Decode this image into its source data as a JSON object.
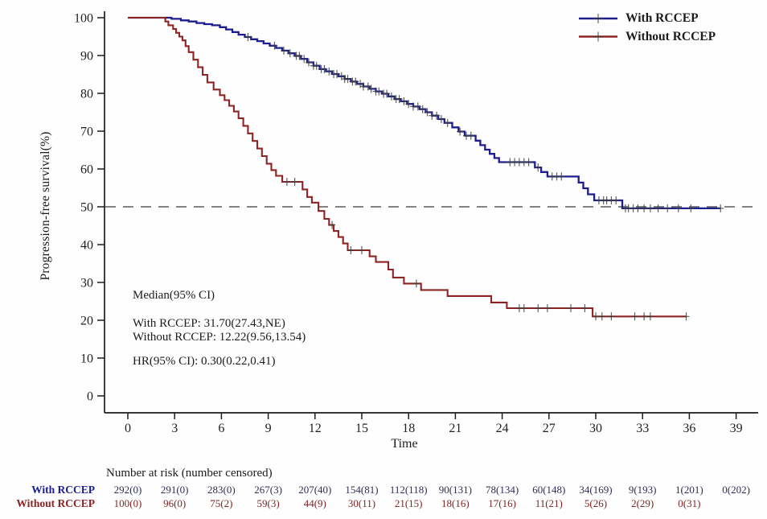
{
  "figure": {
    "background": "#fefefe",
    "axis_color": "#1c1c1c",
    "tick_label_color": "#1f1f1f",
    "dashed_line_color": "#5a5a5a",
    "censor_mark_color": "#404040"
  },
  "chart_data": {
    "type": "line",
    "subtype": "kaplan-meier-step-curves",
    "title": "",
    "xlabel": "Time",
    "ylabel": "Progression-free survival(%)",
    "xlim": [
      0,
      39
    ],
    "ylim": [
      0,
      100
    ],
    "xticks": [
      0,
      3,
      6,
      9,
      12,
      15,
      18,
      21,
      24,
      27,
      30,
      33,
      36,
      39
    ],
    "yticks": [
      0,
      10,
      20,
      30,
      40,
      50,
      60,
      70,
      80,
      90,
      100
    ],
    "grid": false,
    "reference_line_y": 50,
    "legend_position": "top-right",
    "series": [
      {
        "name": "With RCCEP",
        "color": "#1d1d8f",
        "start": [
          0,
          100
        ],
        "end_time": 38.0,
        "steps": [
          [
            2.8,
            99.7
          ],
          [
            3.4,
            99.3
          ],
          [
            3.9,
            99.0
          ],
          [
            4.4,
            98.6
          ],
          [
            4.9,
            98.3
          ],
          [
            5.4,
            98.0
          ],
          [
            5.9,
            97.5
          ],
          [
            6.3,
            96.9
          ],
          [
            6.7,
            96.2
          ],
          [
            7.1,
            95.5
          ],
          [
            7.5,
            94.9
          ],
          [
            7.9,
            94.3
          ],
          [
            8.3,
            93.8
          ],
          [
            8.7,
            93.2
          ],
          [
            9.1,
            92.6
          ],
          [
            9.5,
            92.0
          ],
          [
            9.9,
            91.3
          ],
          [
            10.3,
            90.6
          ],
          [
            10.7,
            89.9
          ],
          [
            11.1,
            89.1
          ],
          [
            11.5,
            88.2
          ],
          [
            11.9,
            87.3
          ],
          [
            12.3,
            86.4
          ],
          [
            12.7,
            85.8
          ],
          [
            13.1,
            85.1
          ],
          [
            13.5,
            84.5
          ],
          [
            13.9,
            83.8
          ],
          [
            14.3,
            83.1
          ],
          [
            14.7,
            82.5
          ],
          [
            15.1,
            81.8
          ],
          [
            15.5,
            81.2
          ],
          [
            15.9,
            80.5
          ],
          [
            16.3,
            79.9
          ],
          [
            16.7,
            79.2
          ],
          [
            17.1,
            78.5
          ],
          [
            17.5,
            77.9
          ],
          [
            17.9,
            77.2
          ],
          [
            18.3,
            76.5
          ],
          [
            18.7,
            75.8
          ],
          [
            19.1,
            75.0
          ],
          [
            19.5,
            74.1
          ],
          [
            19.9,
            73.2
          ],
          [
            20.3,
            72.2
          ],
          [
            20.8,
            71.0
          ],
          [
            21.2,
            69.9
          ],
          [
            21.6,
            68.8
          ],
          [
            22.3,
            67.5
          ],
          [
            22.6,
            66.3
          ],
          [
            22.9,
            65.1
          ],
          [
            23.2,
            64.0
          ],
          [
            23.5,
            62.9
          ],
          [
            23.8,
            61.8
          ],
          [
            26.1,
            60.4
          ],
          [
            26.5,
            59.2
          ],
          [
            26.9,
            58.0
          ],
          [
            28.9,
            56.4
          ],
          [
            29.2,
            54.9
          ],
          [
            29.5,
            53.3
          ],
          [
            29.9,
            51.7
          ],
          [
            31.7,
            49.6
          ]
        ],
        "censor_times": [
          7.7,
          9.4,
          10.0,
          10.4,
          10.8,
          11.0,
          11.3,
          11.6,
          11.9,
          12.1,
          12.4,
          12.6,
          12.9,
          13.2,
          13.4,
          13.7,
          13.9,
          14.1,
          14.4,
          14.6,
          14.9,
          15.1,
          15.4,
          15.6,
          15.9,
          16.1,
          16.4,
          16.6,
          16.9,
          17.2,
          17.4,
          17.7,
          18.0,
          18.3,
          18.6,
          18.9,
          19.2,
          19.5,
          19.8,
          20.1,
          20.5,
          21.3,
          21.7,
          22.0,
          24.5,
          24.8,
          25.1,
          25.4,
          25.7,
          26.3,
          27.2,
          27.5,
          27.8,
          30.2,
          30.5,
          30.7,
          31.0,
          31.3,
          31.9,
          32.1,
          32.4,
          32.7,
          33.1,
          33.5,
          34.0,
          34.6,
          35.3,
          36.1,
          38.0
        ],
        "median_text": "31.70(27.43,NE)"
      },
      {
        "name": "Without RCCEP",
        "color": "#8e2323",
        "start": [
          0,
          100
        ],
        "end_time": 35.8,
        "steps": [
          [
            2.4,
            99.0
          ],
          [
            2.6,
            98.0
          ],
          [
            2.9,
            97.0
          ],
          [
            3.1,
            96.0
          ],
          [
            3.3,
            95.0
          ],
          [
            3.5,
            94.0
          ],
          [
            3.7,
            92.5
          ],
          [
            3.9,
            90.9
          ],
          [
            4.2,
            88.9
          ],
          [
            4.5,
            86.9
          ],
          [
            4.8,
            84.9
          ],
          [
            5.1,
            82.9
          ],
          [
            5.5,
            81.0
          ],
          [
            5.9,
            79.5
          ],
          [
            6.2,
            78.2
          ],
          [
            6.5,
            76.7
          ],
          [
            6.8,
            75.2
          ],
          [
            7.1,
            73.4
          ],
          [
            7.4,
            71.4
          ],
          [
            7.7,
            69.4
          ],
          [
            8.0,
            67.4
          ],
          [
            8.3,
            65.4
          ],
          [
            8.6,
            63.4
          ],
          [
            8.9,
            61.4
          ],
          [
            9.2,
            59.7
          ],
          [
            9.5,
            58.2
          ],
          [
            9.9,
            56.6
          ],
          [
            11.2,
            54.6
          ],
          [
            11.5,
            52.6
          ],
          [
            11.8,
            51.1
          ],
          [
            12.22,
            48.9
          ],
          [
            12.6,
            46.8
          ],
          [
            12.9,
            45.2
          ],
          [
            13.2,
            43.6
          ],
          [
            13.5,
            42.0
          ],
          [
            13.8,
            40.3
          ],
          [
            14.1,
            38.5
          ],
          [
            15.5,
            36.9
          ],
          [
            15.9,
            35.4
          ],
          [
            16.7,
            33.4
          ],
          [
            17.0,
            31.3
          ],
          [
            17.7,
            29.7
          ],
          [
            18.8,
            28.0
          ],
          [
            20.5,
            26.4
          ],
          [
            23.3,
            24.7
          ],
          [
            24.3,
            23.2
          ],
          [
            29.8,
            21.0
          ]
        ],
        "censor_times": [
          10.2,
          10.7,
          13.1,
          14.3,
          15.0,
          18.5,
          25.1,
          25.4,
          26.3,
          26.9,
          28.4,
          29.3,
          30.0,
          30.4,
          31.0,
          32.5,
          33.1,
          33.5,
          35.8
        ],
        "median_text": "12.22(9.56,13.54)"
      }
    ]
  },
  "annotation": {
    "line1": "Median(95% CI)",
    "line2": "With RCCEP:  31.70(27.43,NE)",
    "line3": "Without RCCEP: 12.22(9.56,13.54)",
    "line4": "HR(95% CI):  0.30(0.22,0.41)"
  },
  "risk_table": {
    "title": "Number at risk  (number censored)",
    "rows": [
      {
        "label": "With RCCEP",
        "label_color": "#1d1d8f",
        "value_color": "#2f2f55",
        "values": [
          "292(0)",
          "291(0)",
          "283(0)",
          "267(3)",
          "207(40)",
          "154(81)",
          "112(118)",
          "90(131)",
          "78(134)",
          "60(148)",
          "34(169)",
          "9(193)",
          "1(201)",
          "0(202)"
        ]
      },
      {
        "label": "Without RCCEP",
        "label_color": "#8e2323",
        "value_color": "#7d2626",
        "values": [
          "100(0)",
          "96(0)",
          "75(2)",
          "59(3)",
          "44(9)",
          "30(11)",
          "21(15)",
          "18(16)",
          "17(16)",
          "11(21)",
          "5(26)",
          "2(29)",
          "0(31)",
          ""
        ]
      }
    ]
  }
}
